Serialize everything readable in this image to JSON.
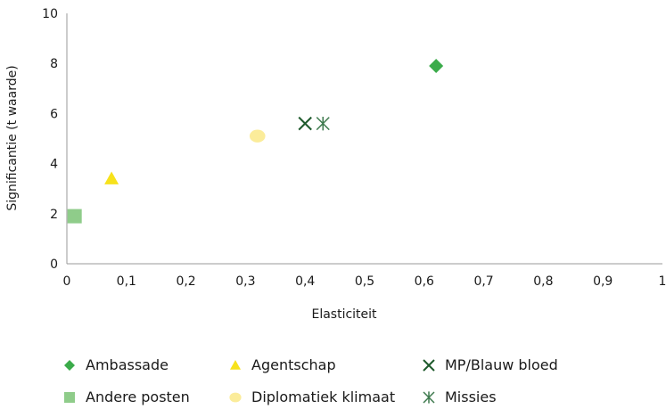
{
  "chart_data": {
    "type": "scatter",
    "xlabel": "Elasticiteit",
    "ylabel": "Significantie (t waarde)",
    "xlim": [
      0,
      1
    ],
    "ylim": [
      0,
      10
    ],
    "x_ticks": [
      "0",
      "0,1",
      "0,2",
      "0,3",
      "0,4",
      "0,5",
      "0,6",
      "0,7",
      "0,8",
      "0,9",
      "1"
    ],
    "y_ticks": [
      "0",
      "2",
      "4",
      "6",
      "8",
      "10"
    ],
    "grid": false,
    "legend_position": "bottom",
    "series": [
      {
        "name": "Ambassade",
        "marker": "diamond",
        "color": "#3bab4a",
        "x": 0.62,
        "y": 7.9
      },
      {
        "name": "Agentschap",
        "marker": "triangle",
        "color": "#f7e21b",
        "x": 0.075,
        "y": 3.4
      },
      {
        "name": "MP/Blauw bloed",
        "marker": "x",
        "color": "#1e5a2c",
        "x": 0.4,
        "y": 5.6
      },
      {
        "name": "Andere posten",
        "marker": "square",
        "color": "#8fcc8a",
        "x": 0.013,
        "y": 1.9
      },
      {
        "name": "Diplomatiek klimaat",
        "marker": "circle",
        "color": "#fbec9a",
        "x": 0.32,
        "y": 5.1
      },
      {
        "name": "Missies",
        "marker": "asterisk",
        "color": "#3e7a4e",
        "x": 0.43,
        "y": 5.6
      }
    ]
  }
}
